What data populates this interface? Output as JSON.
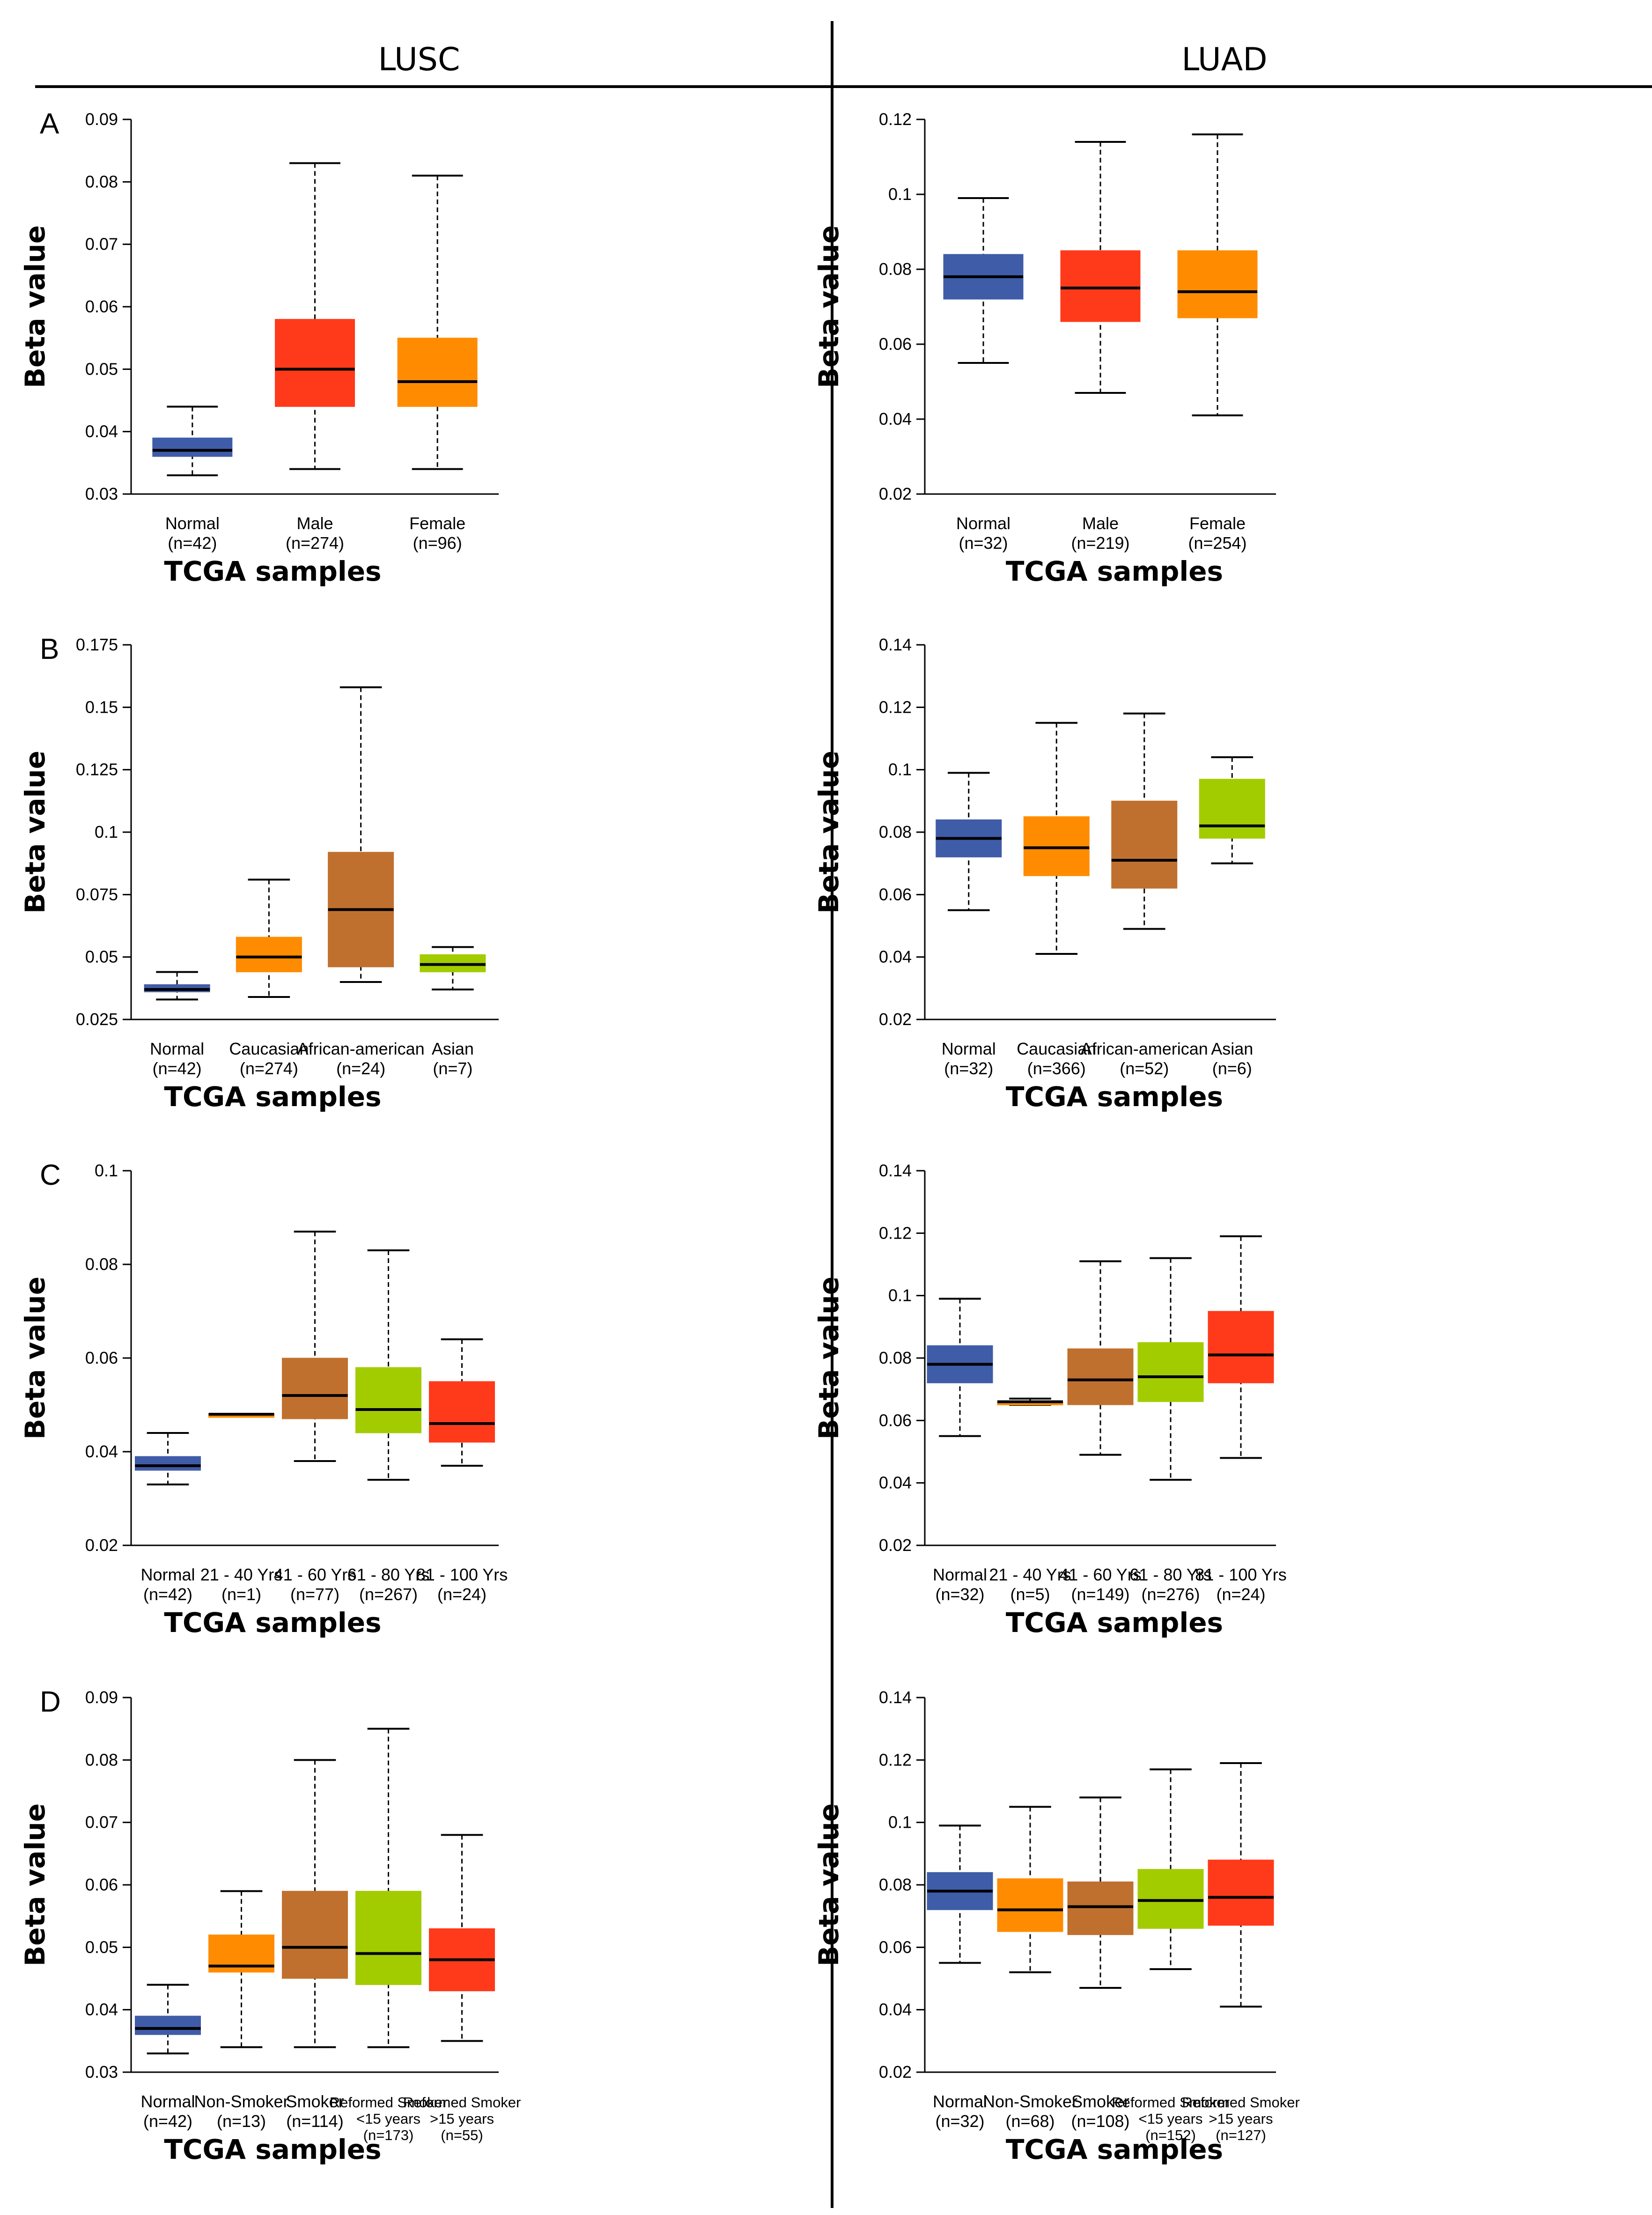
{
  "columns": [
    "LUSC",
    "LUAD"
  ],
  "colors": {
    "blue": "#3f5ca8",
    "red": "#ff3a1a",
    "orange": "#ff8c00",
    "brown": "#c0702e",
    "green": "#a3cc00"
  },
  "chart_data": [
    {
      "type": "box",
      "panel": "A",
      "column": "LUSC",
      "ylabel": "Beta value",
      "xlabel": "TCGA samples",
      "ylim": [
        0.03,
        0.09
      ],
      "yticks": [
        "0.03",
        "0.04",
        "0.05",
        "0.06",
        "0.07",
        "0.08",
        "0.09"
      ],
      "categories": [
        [
          "Normal",
          "(n=42)"
        ],
        [
          "Male",
          "(n=274)"
        ],
        [
          "Female",
          "(n=96)"
        ]
      ],
      "boxes": [
        {
          "color": "#3f5ca8",
          "min": 0.033,
          "q1": 0.036,
          "median": 0.037,
          "q3": 0.039,
          "max": 0.044
        },
        {
          "color": "#ff3a1a",
          "min": 0.034,
          "q1": 0.044,
          "median": 0.05,
          "q3": 0.058,
          "max": 0.083
        },
        {
          "color": "#ff8c00",
          "min": 0.034,
          "q1": 0.044,
          "median": 0.048,
          "q3": 0.055,
          "max": 0.081
        }
      ]
    },
    {
      "type": "box",
      "panel": "",
      "column": "LUAD",
      "ylabel": "Beta value",
      "xlabel": "TCGA samples",
      "ylim": [
        0.02,
        0.12
      ],
      "yticks": [
        "0.02",
        "0.04",
        "0.06",
        "0.08",
        "0.1",
        "0.12"
      ],
      "categories": [
        [
          "Normal",
          "(n=32)"
        ],
        [
          "Male",
          "(n=219)"
        ],
        [
          "Female",
          "(n=254)"
        ]
      ],
      "boxes": [
        {
          "color": "#3f5ca8",
          "min": 0.055,
          "q1": 0.072,
          "median": 0.078,
          "q3": 0.084,
          "max": 0.099
        },
        {
          "color": "#ff3a1a",
          "min": 0.047,
          "q1": 0.066,
          "median": 0.075,
          "q3": 0.085,
          "max": 0.114
        },
        {
          "color": "#ff8c00",
          "min": 0.041,
          "q1": 0.067,
          "median": 0.074,
          "q3": 0.085,
          "max": 0.116
        }
      ]
    },
    {
      "type": "box",
      "panel": "B",
      "column": "LUSC",
      "ylabel": "Beta value",
      "xlabel": "TCGA samples",
      "ylim": [
        0.025,
        0.175
      ],
      "yticks": [
        "0.025",
        "0.05",
        "0.075",
        "0.1",
        "0.125",
        "0.15",
        "0.175"
      ],
      "categories": [
        [
          "Normal",
          "(n=42)"
        ],
        [
          "Caucasian",
          "(n=274)"
        ],
        [
          "African-american",
          "(n=24)"
        ],
        [
          "Asian",
          "(n=7)"
        ]
      ],
      "boxes": [
        {
          "color": "#3f5ca8",
          "min": 0.033,
          "q1": 0.036,
          "median": 0.037,
          "q3": 0.039,
          "max": 0.044
        },
        {
          "color": "#ff8c00",
          "min": 0.034,
          "q1": 0.044,
          "median": 0.05,
          "q3": 0.058,
          "max": 0.081
        },
        {
          "color": "#c0702e",
          "min": 0.04,
          "q1": 0.046,
          "median": 0.069,
          "q3": 0.092,
          "max": 0.158
        },
        {
          "color": "#a3cc00",
          "min": 0.037,
          "q1": 0.044,
          "median": 0.047,
          "q3": 0.051,
          "max": 0.054
        }
      ]
    },
    {
      "type": "box",
      "panel": "",
      "column": "LUAD",
      "ylabel": "Beta value",
      "xlabel": "TCGA samples",
      "ylim": [
        0.02,
        0.14
      ],
      "yticks": [
        "0.02",
        "0.04",
        "0.06",
        "0.08",
        "0.1",
        "0.12",
        "0.14"
      ],
      "categories": [
        [
          "Normal",
          "(n=32)"
        ],
        [
          "Caucasian",
          "(n=366)"
        ],
        [
          "African-american",
          "(n=52)"
        ],
        [
          "Asian",
          "(n=6)"
        ]
      ],
      "boxes": [
        {
          "color": "#3f5ca8",
          "min": 0.055,
          "q1": 0.072,
          "median": 0.078,
          "q3": 0.084,
          "max": 0.099
        },
        {
          "color": "#ff8c00",
          "min": 0.041,
          "q1": 0.066,
          "median": 0.075,
          "q3": 0.085,
          "max": 0.115
        },
        {
          "color": "#c0702e",
          "min": 0.049,
          "q1": 0.062,
          "median": 0.071,
          "q3": 0.09,
          "max": 0.118
        },
        {
          "color": "#a3cc00",
          "min": 0.07,
          "q1": 0.078,
          "median": 0.082,
          "q3": 0.097,
          "max": 0.104
        }
      ]
    },
    {
      "type": "box",
      "panel": "C",
      "column": "LUSC",
      "ylabel": "Beta value",
      "xlabel": "TCGA samples",
      "ylim": [
        0.02,
        0.1
      ],
      "yticks": [
        "0.02",
        "0.04",
        "0.06",
        "0.08",
        "0.1"
      ],
      "categories": [
        [
          "Normal",
          "(n=42)"
        ],
        [
          "21 - 40 Yrs",
          "(n=1)"
        ],
        [
          "41 - 60 Yrs",
          "(n=77)"
        ],
        [
          "61 - 80 Yrs",
          "(n=267)"
        ],
        [
          "81 - 100 Yrs",
          "(n=24)"
        ]
      ],
      "boxes": [
        {
          "color": "#3f5ca8",
          "min": 0.033,
          "q1": 0.036,
          "median": 0.037,
          "q3": 0.039,
          "max": 0.044
        },
        {
          "color": "#ff8c00",
          "min": 0.048,
          "q1": 0.048,
          "median": 0.048,
          "q3": 0.048,
          "max": 0.048
        },
        {
          "color": "#c0702e",
          "min": 0.038,
          "q1": 0.047,
          "median": 0.052,
          "q3": 0.06,
          "max": 0.087
        },
        {
          "color": "#a3cc00",
          "min": 0.034,
          "q1": 0.044,
          "median": 0.049,
          "q3": 0.058,
          "max": 0.083
        },
        {
          "color": "#ff3a1a",
          "min": 0.037,
          "q1": 0.042,
          "median": 0.046,
          "q3": 0.055,
          "max": 0.064
        }
      ]
    },
    {
      "type": "box",
      "panel": "",
      "column": "LUAD",
      "ylabel": "Beta value",
      "xlabel": "TCGA samples",
      "ylim": [
        0.02,
        0.14
      ],
      "yticks": [
        "0.02",
        "0.04",
        "0.06",
        "0.08",
        "0.1",
        "0.12",
        "0.14"
      ],
      "categories": [
        [
          "Normal",
          "(n=32)"
        ],
        [
          "21 - 40 Yrs",
          "(n=5)"
        ],
        [
          "41 - 60 Yrs",
          "(n=149)"
        ],
        [
          "61 - 80 Yrs",
          "(n=276)"
        ],
        [
          "81 - 100 Yrs",
          "(n=24)"
        ]
      ],
      "boxes": [
        {
          "color": "#3f5ca8",
          "min": 0.055,
          "q1": 0.072,
          "median": 0.078,
          "q3": 0.084,
          "max": 0.099
        },
        {
          "color": "#ff8c00",
          "min": 0.065,
          "q1": 0.065,
          "median": 0.066,
          "q3": 0.066,
          "max": 0.067
        },
        {
          "color": "#c0702e",
          "min": 0.049,
          "q1": 0.065,
          "median": 0.073,
          "q3": 0.083,
          "max": 0.111
        },
        {
          "color": "#a3cc00",
          "min": 0.041,
          "q1": 0.066,
          "median": 0.074,
          "q3": 0.085,
          "max": 0.112
        },
        {
          "color": "#ff3a1a",
          "min": 0.048,
          "q1": 0.072,
          "median": 0.081,
          "q3": 0.095,
          "max": 0.119
        }
      ]
    },
    {
      "type": "box",
      "panel": "D",
      "column": "LUSC",
      "ylabel": "Beta value",
      "xlabel": "TCGA samples",
      "ylim": [
        0.03,
        0.09
      ],
      "yticks": [
        "0.03",
        "0.04",
        "0.05",
        "0.06",
        "0.07",
        "0.08",
        "0.09"
      ],
      "categories": [
        [
          "Normal",
          "(n=42)"
        ],
        [
          "Non-Smoker",
          "(n=13)"
        ],
        [
          "Smoker",
          "(n=114)"
        ],
        [
          "Reformed Smoker",
          "<15 years",
          "(n=173)"
        ],
        [
          "Reformed Smoker",
          ">15 years",
          "(n=55)"
        ]
      ],
      "boxes": [
        {
          "color": "#3f5ca8",
          "min": 0.033,
          "q1": 0.036,
          "median": 0.037,
          "q3": 0.039,
          "max": 0.044
        },
        {
          "color": "#ff8c00",
          "min": 0.034,
          "q1": 0.046,
          "median": 0.047,
          "q3": 0.052,
          "max": 0.059
        },
        {
          "color": "#c0702e",
          "min": 0.034,
          "q1": 0.045,
          "median": 0.05,
          "q3": 0.059,
          "max": 0.08
        },
        {
          "color": "#a3cc00",
          "min": 0.034,
          "q1": 0.044,
          "median": 0.049,
          "q3": 0.059,
          "max": 0.085
        },
        {
          "color": "#ff3a1a",
          "min": 0.035,
          "q1": 0.043,
          "median": 0.048,
          "q3": 0.053,
          "max": 0.068
        }
      ]
    },
    {
      "type": "box",
      "panel": "",
      "column": "LUAD",
      "ylabel": "Beta value",
      "xlabel": "TCGA samples",
      "ylim": [
        0.02,
        0.14
      ],
      "yticks": [
        "0.02",
        "0.04",
        "0.06",
        "0.08",
        "0.1",
        "0.12",
        "0.14"
      ],
      "categories": [
        [
          "Normal",
          "(n=32)"
        ],
        [
          "Non-Smoker",
          "(n=68)"
        ],
        [
          "Smoker",
          "(n=108)"
        ],
        [
          "Reformed Smoker",
          "<15 years",
          "(n=152)"
        ],
        [
          "Reformed Smoker",
          ">15 years",
          "(n=127)"
        ]
      ],
      "boxes": [
        {
          "color": "#3f5ca8",
          "min": 0.055,
          "q1": 0.072,
          "median": 0.078,
          "q3": 0.084,
          "max": 0.099
        },
        {
          "color": "#ff8c00",
          "min": 0.052,
          "q1": 0.065,
          "median": 0.072,
          "q3": 0.082,
          "max": 0.105
        },
        {
          "color": "#c0702e",
          "min": 0.047,
          "q1": 0.064,
          "median": 0.073,
          "q3": 0.081,
          "max": 0.108
        },
        {
          "color": "#a3cc00",
          "min": 0.053,
          "q1": 0.066,
          "median": 0.075,
          "q3": 0.085,
          "max": 0.117
        },
        {
          "color": "#ff3a1a",
          "min": 0.041,
          "q1": 0.067,
          "median": 0.076,
          "q3": 0.088,
          "max": 0.119
        }
      ]
    }
  ]
}
